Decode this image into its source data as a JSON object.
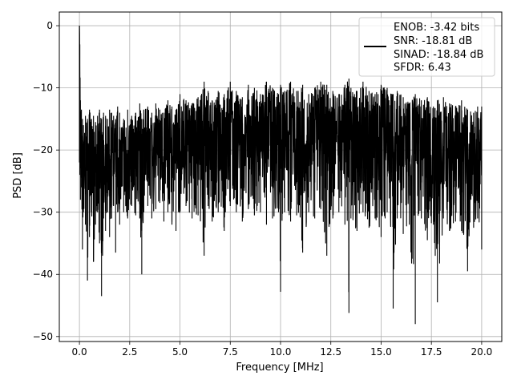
{
  "chart_data": {
    "type": "line",
    "title": "",
    "xlabel": "Frequency [MHz]",
    "ylabel": "PSD [dB]",
    "xlim": [
      -1.0,
      21.0
    ],
    "ylim": [
      -50.8,
      2.2
    ],
    "xticks": [
      0.0,
      2.5,
      5.0,
      7.5,
      10.0,
      12.5,
      15.0,
      17.5,
      20.0
    ],
    "xtick_labels": [
      "0.0",
      "2.5",
      "5.0",
      "7.5",
      "10.0",
      "12.5",
      "15.0",
      "17.5",
      "20.0"
    ],
    "yticks": [
      0,
      -10,
      -20,
      -30,
      -40,
      -50
    ],
    "ytick_labels": [
      "0",
      "−10",
      "−20",
      "−30",
      "−40",
      "−50"
    ],
    "grid": true,
    "legend": {
      "placement": "top-right",
      "lines": [
        "ENOB: -3.42 bits",
        "SNR: -18.81 dB",
        "SINAD: -18.84 dB",
        "SFDR: 6.43"
      ]
    },
    "series": [
      {
        "color": "#000000",
        "approximate_envelope": true,
        "x": [
          0.0,
          0.02,
          0.05,
          0.1,
          0.15,
          0.2,
          0.3,
          0.4,
          0.5,
          0.6,
          0.7,
          0.8,
          0.9,
          1.0,
          1.1,
          1.2,
          1.3,
          1.4,
          1.5,
          1.6,
          1.7,
          1.8,
          1.9,
          2.0,
          2.2,
          2.4,
          2.6,
          2.8,
          3.0,
          3.1,
          3.2,
          3.4,
          3.6,
          3.8,
          4.0,
          4.2,
          4.4,
          4.6,
          4.8,
          5.0,
          5.3,
          5.6,
          5.9,
          6.2,
          6.4,
          6.6,
          6.9,
          7.2,
          7.5,
          7.8,
          8.1,
          8.4,
          8.7,
          9.0,
          9.3,
          9.6,
          9.9,
          10.0,
          10.2,
          10.5,
          10.8,
          11.1,
          11.4,
          11.7,
          12.0,
          12.3,
          12.6,
          12.9,
          13.2,
          13.4,
          13.5,
          13.8,
          14.1,
          14.4,
          14.7,
          15.0,
          15.3,
          15.6,
          15.8,
          16.1,
          16.4,
          16.7,
          17.0,
          17.3,
          17.6,
          17.8,
          18.1,
          18.4,
          18.7,
          19.0,
          19.3,
          19.6,
          19.8,
          20.0
        ],
        "upper": [
          0.0,
          -3.0,
          -12.0,
          -13.5,
          -15.0,
          -16.0,
          -14.5,
          -15.0,
          -13.5,
          -15.0,
          -14.5,
          -15.5,
          -14.5,
          -13.5,
          -15.0,
          -14.0,
          -14.5,
          -15.0,
          -13.5,
          -14.0,
          -14.5,
          -15.0,
          -13.0,
          -14.0,
          -15.0,
          -13.5,
          -14.5,
          -14.0,
          -12.5,
          -15.0,
          -13.5,
          -13.0,
          -14.0,
          -12.5,
          -13.5,
          -14.0,
          -12.0,
          -13.0,
          -13.5,
          -11.0,
          -12.0,
          -12.5,
          -11.5,
          -9.0,
          -10.5,
          -12.0,
          -10.5,
          -11.0,
          -9.0,
          -10.5,
          -11.5,
          -9.5,
          -10.0,
          -11.0,
          -9.0,
          -10.0,
          -11.0,
          -9.5,
          -10.5,
          -9.0,
          -10.5,
          -9.5,
          -11.0,
          -10.0,
          -9.0,
          -9.5,
          -10.5,
          -11.0,
          -9.5,
          -8.5,
          -10.0,
          -10.5,
          -9.0,
          -10.5,
          -11.0,
          -9.5,
          -10.0,
          -11.0,
          -10.5,
          -11.5,
          -12.5,
          -11.0,
          -12.0,
          -11.5,
          -13.0,
          -12.0,
          -11.5,
          -12.5,
          -13.0,
          -12.0,
          -13.5,
          -14.0,
          -13.0,
          -13.0
        ],
        "lower": [
          -22.0,
          -24.0,
          -28.0,
          -26.0,
          -36.0,
          -30.0,
          -32.0,
          -41.0,
          -34.0,
          -30.0,
          -38.0,
          -32.0,
          -30.0,
          -35.0,
          -43.5,
          -31.0,
          -33.0,
          -30.0,
          -34.0,
          -31.0,
          -29.0,
          -36.5,
          -30.0,
          -32.0,
          -30.0,
          -31.0,
          -29.0,
          -30.5,
          -31.0,
          -40.0,
          -30.0,
          -29.0,
          -31.0,
          -29.5,
          -28.5,
          -31.5,
          -30.0,
          -32.0,
          -33.0,
          -30.0,
          -29.0,
          -31.0,
          -30.5,
          -37.0,
          -29.0,
          -31.5,
          -30.0,
          -33.0,
          -29.0,
          -30.0,
          -31.5,
          -29.5,
          -30.5,
          -30.0,
          -32.0,
          -31.0,
          -30.0,
          -42.8,
          -30.0,
          -31.5,
          -30.5,
          -36.5,
          -30.0,
          -31.0,
          -29.5,
          -37.0,
          -31.0,
          -30.0,
          -32.0,
          -46.2,
          -31.0,
          -33.0,
          -30.0,
          -32.5,
          -31.0,
          -34.0,
          -30.0,
          -45.5,
          -31.0,
          -33.5,
          -32.0,
          -48.0,
          -31.0,
          -34.5,
          -32.0,
          -44.5,
          -31.0,
          -33.0,
          -31.5,
          -33.0,
          -39.5,
          -32.5,
          -31.0,
          -36.0
        ],
        "baseline": [
          0.0,
          -12.0,
          -18.0,
          -20.0,
          -21.0,
          -21.5,
          -21.0,
          -22.0,
          -21.0,
          -21.5,
          -22.0,
          -21.0,
          -20.5,
          -21.0,
          -22.0,
          -21.0,
          -21.5,
          -21.0,
          -20.5,
          -21.0,
          -21.5,
          -21.0,
          -20.5,
          -21.0,
          -21.0,
          -20.5,
          -21.0,
          -20.5,
          -20.0,
          -21.0,
          -20.5,
          -20.0,
          -20.5,
          -20.0,
          -19.5,
          -20.5,
          -20.0,
          -20.5,
          -20.0,
          -19.5,
          -19.0,
          -19.5,
          -19.0,
          -18.5,
          -19.0,
          -19.5,
          -19.0,
          -18.5,
          -18.0,
          -18.5,
          -19.0,
          -18.5,
          -18.0,
          -18.5,
          -18.0,
          -18.5,
          -19.0,
          -18.5,
          -18.0,
          -18.5,
          -18.0,
          -18.5,
          -19.0,
          -18.5,
          -18.0,
          -18.5,
          -18.0,
          -19.0,
          -18.5,
          -18.0,
          -18.5,
          -19.0,
          -18.5,
          -19.0,
          -19.5,
          -19.0,
          -19.5,
          -20.0,
          -19.5,
          -20.0,
          -20.5,
          -20.0,
          -20.5,
          -21.0,
          -20.5,
          -21.0,
          -20.5,
          -21.0,
          -21.5,
          -21.0,
          -21.5,
          -22.0,
          -21.5,
          -21.5
        ]
      }
    ]
  }
}
